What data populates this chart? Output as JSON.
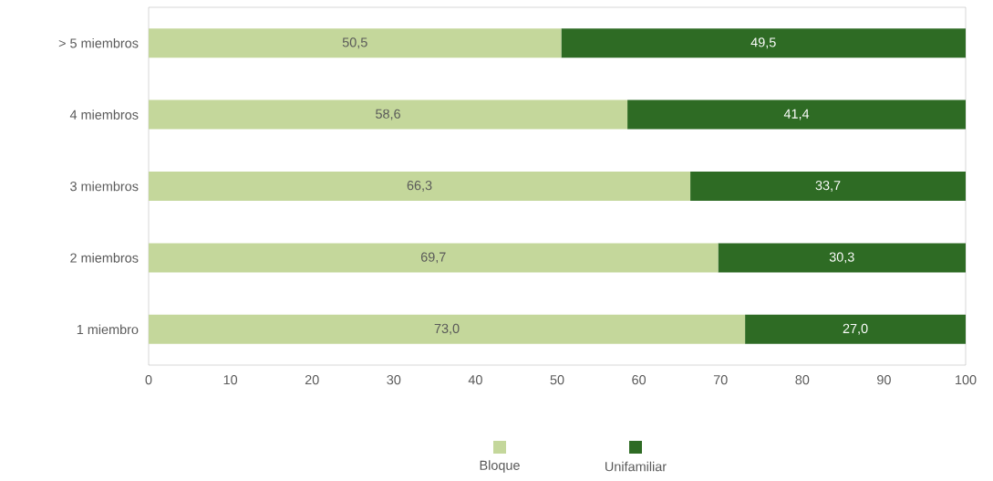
{
  "chart_data": {
    "type": "bar",
    "orientation": "horizontal",
    "stacked": true,
    "categories": [
      "> 5 miembros",
      "4 miembros",
      "3 miembros",
      "2 miembros",
      "1 miembro"
    ],
    "series": [
      {
        "name": "Bloque",
        "color": "#c4d79b",
        "values": [
          50.5,
          58.6,
          66.3,
          69.7,
          73.0
        ],
        "value_labels": [
          "50,5",
          "58,6",
          "66,3",
          "69,7",
          "73,0"
        ]
      },
      {
        "name": "Unifamiliar",
        "color": "#2e6b24",
        "values": [
          49.5,
          41.4,
          33.7,
          30.3,
          27.0
        ],
        "value_labels": [
          "49,5",
          "41,4",
          "33,7",
          "30,3",
          "27,0"
        ]
      }
    ],
    "xlim": [
      0,
      100
    ],
    "xticks": [
      0,
      10,
      20,
      30,
      40,
      50,
      60,
      70,
      80,
      90,
      100
    ],
    "legend": "bottom"
  }
}
